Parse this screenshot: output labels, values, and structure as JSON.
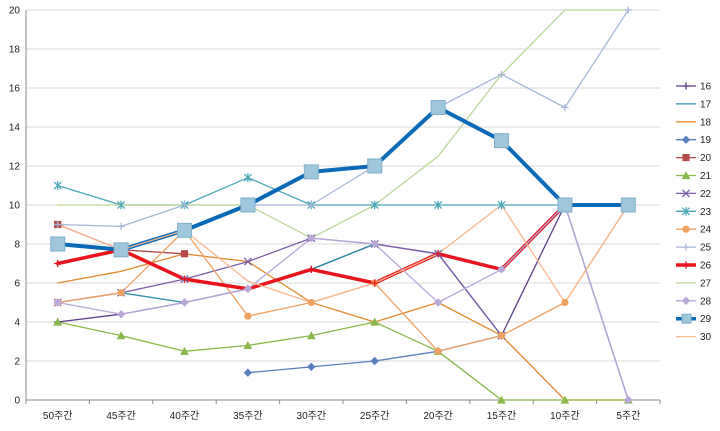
{
  "chart_data": {
    "type": "line",
    "title": "",
    "xlabel": "",
    "ylabel": "",
    "ylim": [
      0,
      20
    ],
    "yticks": [
      0,
      2,
      4,
      6,
      8,
      10,
      12,
      14,
      16,
      18,
      20
    ],
    "categories": [
      "50주간",
      "45주간",
      "40주간",
      "35주간",
      "30주간",
      "25주간",
      "20주간",
      "15주간",
      "10주간",
      "5주간"
    ],
    "grid": "horizontal",
    "legend_position": "right",
    "series": [
      {
        "name": "16",
        "color": "#5b3f8c",
        "marker": "plus",
        "width": 1.3,
        "values": [
          4,
          4.4,
          5,
          5.7,
          6.7,
          8,
          7.5,
          3.3,
          10,
          0
        ]
      },
      {
        "name": "17",
        "color": "#2c8fa8",
        "marker": "none",
        "width": 1.3,
        "values": [
          null,
          5.5,
          5,
          null,
          6.7,
          8,
          null,
          null,
          null,
          null
        ]
      },
      {
        "name": "18",
        "color": "#e08a2e",
        "marker": "none",
        "width": 1.3,
        "values": [
          6,
          6.6,
          7.5,
          7.1,
          5,
          4,
          5,
          3.3,
          0,
          0
        ]
      },
      {
        "name": "19",
        "color": "#5a7fbf",
        "marker": "diamond",
        "width": 1.3,
        "values": [
          null,
          null,
          null,
          1.4,
          1.7,
          2,
          2.5,
          3.3,
          null,
          null
        ]
      },
      {
        "name": "20",
        "color": "#b54a4a",
        "marker": "square",
        "width": 1.3,
        "values": [
          9,
          7.7,
          7.5,
          null,
          null,
          null,
          null,
          null,
          null,
          null
        ]
      },
      {
        "name": "21",
        "color": "#8ab84a",
        "marker": "triangle",
        "width": 1.3,
        "values": [
          4,
          3.3,
          2.5,
          2.8,
          3.3,
          4,
          2.5,
          0,
          0,
          0
        ]
      },
      {
        "name": "22",
        "color": "#7a5fa8",
        "marker": "x",
        "width": 1.3,
        "values": [
          5,
          5.5,
          6.2,
          7.1,
          8.3,
          8,
          7.5,
          3.3,
          null,
          null
        ]
      },
      {
        "name": "23",
        "color": "#4aa8b8",
        "marker": "star",
        "width": 1.3,
        "values": [
          11,
          10,
          10,
          11.4,
          10,
          10,
          10,
          10,
          10,
          10
        ]
      },
      {
        "name": "24",
        "color": "#f0a060",
        "marker": "circle",
        "width": 1.3,
        "values": [
          5,
          5.5,
          8.7,
          4.3,
          5,
          6,
          2.5,
          3.3,
          5,
          10
        ]
      },
      {
        "name": "25",
        "color": "#a8b8d8",
        "marker": "plus",
        "width": 1.3,
        "values": [
          9,
          8.9,
          10,
          10,
          10,
          12,
          15,
          16.7,
          15,
          20
        ]
      },
      {
        "name": "26",
        "color": "#e8141c",
        "marker": "plus",
        "width": 3.5,
        "values": [
          7,
          7.7,
          6.2,
          5.7,
          6.7,
          6,
          7.5,
          6.7,
          10,
          null
        ]
      },
      {
        "name": "27",
        "color": "#bcd89a",
        "marker": "none",
        "width": 1.3,
        "values": [
          10,
          10,
          10,
          10,
          8.3,
          10,
          12.5,
          16.7,
          20,
          20
        ]
      },
      {
        "name": "28",
        "color": "#b8a8d8",
        "marker": "diamond",
        "width": 1.3,
        "values": [
          5,
          4.4,
          5,
          5.7,
          8.3,
          8,
          5,
          6.7,
          10,
          0
        ]
      },
      {
        "name": "29",
        "color": "#0a6ab8",
        "marker": "bigsquare",
        "width": 4,
        "values": [
          8,
          7.7,
          8.7,
          10,
          11.7,
          12,
          15,
          13.3,
          10,
          10
        ]
      },
      {
        "name": "30",
        "color": "#f8b890",
        "marker": "none",
        "width": 1.3,
        "values": [
          9,
          7.7,
          8.7,
          6.1,
          5,
          6,
          7.5,
          10,
          5,
          10
        ]
      }
    ]
  }
}
